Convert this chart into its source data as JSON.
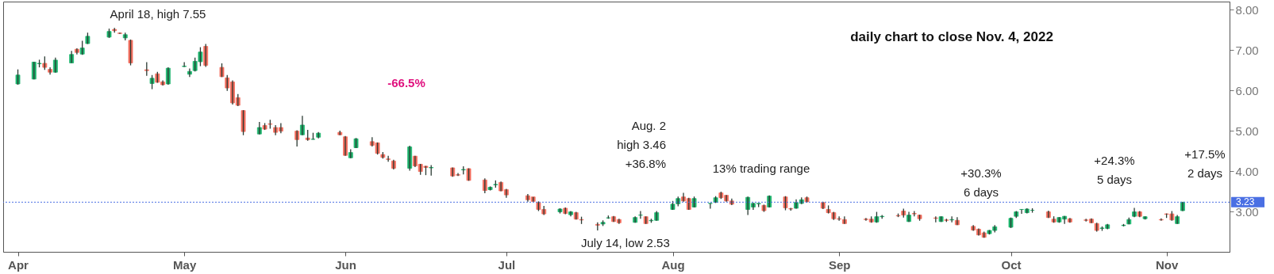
{
  "chart_data": {
    "type": "candlestick",
    "title": "daily chart to close Nov. 4, 2022",
    "x": [
      "2022-04-01",
      "2022-04-04",
      "2022-04-05",
      "2022-04-06",
      "2022-04-07",
      "2022-04-08",
      "2022-04-11",
      "2022-04-12",
      "2022-04-13",
      "2022-04-14",
      "2022-04-18",
      "2022-04-19",
      "2022-04-20",
      "2022-04-21",
      "2022-04-22",
      "2022-04-25",
      "2022-04-26",
      "2022-04-27",
      "2022-04-28",
      "2022-04-29",
      "2022-05-02",
      "2022-05-03",
      "2022-05-04",
      "2022-05-05",
      "2022-05-06",
      "2022-05-09",
      "2022-05-10",
      "2022-05-11",
      "2022-05-12",
      "2022-05-13",
      "2022-05-16",
      "2022-05-17",
      "2022-05-18",
      "2022-05-19",
      "2022-05-20",
      "2022-05-23",
      "2022-05-24",
      "2022-05-25",
      "2022-05-26",
      "2022-05-27",
      "2022-05-31",
      "2022-06-01",
      "2022-06-02",
      "2022-06-03",
      "2022-06-06",
      "2022-06-07",
      "2022-06-08",
      "2022-06-09",
      "2022-06-10",
      "2022-06-13",
      "2022-06-14",
      "2022-06-15",
      "2022-06-16",
      "2022-06-17",
      "2022-06-21",
      "2022-06-22",
      "2022-06-23",
      "2022-06-24",
      "2022-06-27",
      "2022-06-28",
      "2022-06-29",
      "2022-06-30",
      "2022-07-01",
      "2022-07-05",
      "2022-07-06",
      "2022-07-07",
      "2022-07-08",
      "2022-07-11",
      "2022-07-12",
      "2022-07-13",
      "2022-07-14",
      "2022-07-15",
      "2022-07-18",
      "2022-07-19",
      "2022-07-20",
      "2022-07-21",
      "2022-07-22",
      "2022-07-25",
      "2022-07-26",
      "2022-07-27",
      "2022-07-28",
      "2022-07-29",
      "2022-08-01",
      "2022-08-02",
      "2022-08-03",
      "2022-08-04",
      "2022-08-05",
      "2022-08-08",
      "2022-08-09",
      "2022-08-10",
      "2022-08-11",
      "2022-08-12",
      "2022-08-15",
      "2022-08-16",
      "2022-08-17",
      "2022-08-18",
      "2022-08-19",
      "2022-08-22",
      "2022-08-23",
      "2022-08-24",
      "2022-08-25",
      "2022-08-26",
      "2022-08-29",
      "2022-08-30",
      "2022-08-31",
      "2022-09-01",
      "2022-09-02",
      "2022-09-06",
      "2022-09-07",
      "2022-09-08",
      "2022-09-09",
      "2022-09-12",
      "2022-09-13",
      "2022-09-14",
      "2022-09-15",
      "2022-09-16",
      "2022-09-19",
      "2022-09-20",
      "2022-09-21",
      "2022-09-22",
      "2022-09-23",
      "2022-09-26",
      "2022-09-27",
      "2022-09-28",
      "2022-09-29",
      "2022-09-30",
      "2022-10-03",
      "2022-10-04",
      "2022-10-05",
      "2022-10-06",
      "2022-10-07",
      "2022-10-10",
      "2022-10-11",
      "2022-10-12",
      "2022-10-13",
      "2022-10-14",
      "2022-10-17",
      "2022-10-18",
      "2022-10-19",
      "2022-10-20",
      "2022-10-21",
      "2022-10-24",
      "2022-10-25",
      "2022-10-26",
      "2022-10-27",
      "2022-10-28",
      "2022-10-31",
      "2022-11-01",
      "2022-11-02",
      "2022-11-03",
      "2022-11-04"
    ],
    "ohlc": [
      [
        6.16,
        6.52,
        6.14,
        6.38
      ],
      [
        6.28,
        6.71,
        6.27,
        6.7
      ],
      [
        6.66,
        6.76,
        6.57,
        6.67
      ],
      [
        6.67,
        6.84,
        6.51,
        6.57
      ],
      [
        6.52,
        6.57,
        6.39,
        6.45
      ],
      [
        6.45,
        6.81,
        6.44,
        6.75
      ],
      [
        6.68,
        6.98,
        6.68,
        6.89
      ],
      [
        7.02,
        7.04,
        6.89,
        6.94
      ],
      [
        6.9,
        7.23,
        6.88,
        7.05
      ],
      [
        7.16,
        7.43,
        7.15,
        7.34
      ],
      [
        7.32,
        7.53,
        7.3,
        7.46
      ],
      [
        7.51,
        7.55,
        7.43,
        7.48
      ],
      [
        7.42,
        7.43,
        7.4,
        7.41
      ],
      [
        7.3,
        7.43,
        7.24,
        7.38
      ],
      [
        7.24,
        7.26,
        6.62,
        6.68
      ],
      [
        6.51,
        6.7,
        6.36,
        6.49
      ],
      [
        6.17,
        6.38,
        6.03,
        6.3
      ],
      [
        6.41,
        6.46,
        6.19,
        6.2
      ],
      [
        6.21,
        6.25,
        6.12,
        6.14
      ],
      [
        6.16,
        6.57,
        6.14,
        6.55
      ],
      [
        6.59,
        6.7,
        6.58,
        6.6
      ],
      [
        6.4,
        6.54,
        6.33,
        6.47
      ],
      [
        6.49,
        6.81,
        6.47,
        6.72
      ],
      [
        6.71,
        7.07,
        6.6,
        6.95
      ],
      [
        7.09,
        7.15,
        6.58,
        6.62
      ],
      [
        6.57,
        6.67,
        6.33,
        6.34
      ],
      [
        6.31,
        6.38,
        5.99,
        6.06
      ],
      [
        6.21,
        6.25,
        5.65,
        5.69
      ],
      [
        5.82,
        5.91,
        5.61,
        5.63
      ],
      [
        5.5,
        5.51,
        4.89,
        4.98
      ],
      [
        4.92,
        5.22,
        4.91,
        5.08
      ],
      [
        5.13,
        5.19,
        5.02,
        5.04
      ],
      [
        5.17,
        5.27,
        5.05,
        5.16
      ],
      [
        5.08,
        5.14,
        4.89,
        4.96
      ],
      [
        5.08,
        5.19,
        4.94,
        4.99
      ],
      [
        4.99,
        5.01,
        4.61,
        4.78
      ],
      [
        4.9,
        5.37,
        4.89,
        5.14
      ],
      [
        4.82,
        5.02,
        4.75,
        4.78
      ],
      [
        4.79,
        4.95,
        4.78,
        4.79
      ],
      [
        4.84,
        4.97,
        4.81,
        4.94
      ],
      [
        4.96,
        5.0,
        4.89,
        4.9
      ],
      [
        4.85,
        4.87,
        4.38,
        4.39
      ],
      [
        4.33,
        4.54,
        4.32,
        4.46
      ],
      [
        4.58,
        4.82,
        4.57,
        4.8
      ],
      [
        4.73,
        4.84,
        4.61,
        4.64
      ],
      [
        4.7,
        4.71,
        4.41,
        4.44
      ],
      [
        4.41,
        4.47,
        4.31,
        4.34
      ],
      [
        4.3,
        4.38,
        4.23,
        4.29
      ],
      [
        4.25,
        4.28,
        4.04,
        4.07
      ],
      [
        4.07,
        4.63,
        4.01,
        4.6
      ],
      [
        4.37,
        4.38,
        4.1,
        4.13
      ],
      [
        4.17,
        4.18,
        3.91,
        3.99
      ],
      [
        4.12,
        4.13,
        3.9,
        4.09
      ],
      [
        4.08,
        4.15,
        3.89,
        4.09
      ],
      [
        4.08,
        4.09,
        3.86,
        3.88
      ],
      [
        3.91,
        3.95,
        3.88,
        3.9
      ],
      [
        4.03,
        4.12,
        3.92,
        4.04
      ],
      [
        4.06,
        4.07,
        3.76,
        3.77
      ],
      [
        3.78,
        3.82,
        3.45,
        3.52
      ],
      [
        3.54,
        3.62,
        3.52,
        3.6
      ],
      [
        3.66,
        3.77,
        3.59,
        3.67
      ],
      [
        3.72,
        3.74,
        3.5,
        3.51
      ],
      [
        3.54,
        3.56,
        3.34,
        3.41
      ],
      [
        3.39,
        3.43,
        3.24,
        3.29
      ],
      [
        3.36,
        3.36,
        3.24,
        3.25
      ],
      [
        3.22,
        3.25,
        3.01,
        3.05
      ],
      [
        3.05,
        3.14,
        2.91,
        2.94
      ],
      [
        2.99,
        3.08,
        2.95,
        3.06
      ],
      [
        3.08,
        3.1,
        2.93,
        2.95
      ],
      [
        2.92,
        3.01,
        2.88,
        2.99
      ],
      [
        2.97,
        2.99,
        2.8,
        2.81
      ],
      [
        2.8,
        2.87,
        2.69,
        2.79
      ],
      [
        2.68,
        2.73,
        2.53,
        2.66
      ],
      [
        2.69,
        2.78,
        2.64,
        2.73
      ],
      [
        2.84,
        2.9,
        2.82,
        2.84
      ],
      [
        2.87,
        2.89,
        2.74,
        2.75
      ],
      [
        2.8,
        2.82,
        2.69,
        2.72
      ],
      [
        2.73,
        2.88,
        2.72,
        2.85
      ],
      [
        2.91,
        3.01,
        2.82,
        2.91
      ],
      [
        2.87,
        2.88,
        2.69,
        2.7
      ],
      [
        2.77,
        2.82,
        2.72,
        2.78
      ],
      [
        2.78,
        3.01,
        2.77,
        2.97
      ],
      [
        3.05,
        3.26,
        3.04,
        3.18
      ],
      [
        3.19,
        3.37,
        3.13,
        3.32
      ],
      [
        3.36,
        3.46,
        3.24,
        3.26
      ],
      [
        3.32,
        3.34,
        3.04,
        3.05
      ],
      [
        3.11,
        3.37,
        3.1,
        3.32
      ],
      [
        3.2,
        3.2,
        3.07,
        3.2
      ],
      [
        3.23,
        3.38,
        3.21,
        3.34
      ],
      [
        3.46,
        3.49,
        3.31,
        3.34
      ],
      [
        3.4,
        3.41,
        3.24,
        3.26
      ],
      [
        3.26,
        3.32,
        3.16,
        3.18
      ],
      [
        3.05,
        3.37,
        2.91,
        3.35
      ],
      [
        3.11,
        3.21,
        3.04,
        3.2
      ],
      [
        3.19,
        3.2,
        3.11,
        3.2
      ],
      [
        3.15,
        3.17,
        2.99,
        3.02
      ],
      [
        3.11,
        3.4,
        3.1,
        3.38
      ],
      [
        3.36,
        3.38,
        3.03,
        3.09
      ],
      [
        3.07,
        3.09,
        3.02,
        3.06
      ],
      [
        3.08,
        3.3,
        3.07,
        3.22
      ],
      [
        3.2,
        3.35,
        3.18,
        3.29
      ],
      [
        3.34,
        3.37,
        3.22,
        3.24
      ],
      [
        3.22,
        3.24,
        3.06,
        3.08
      ],
      [
        3.05,
        3.15,
        2.95,
        2.97
      ],
      [
        2.97,
        2.99,
        2.79,
        2.82
      ],
      [
        2.82,
        2.88,
        2.77,
        2.81
      ],
      [
        2.8,
        2.88,
        2.69,
        2.7
      ],
      [
        2.81,
        2.84,
        2.77,
        2.8
      ],
      [
        2.81,
        2.88,
        2.72,
        2.74
      ],
      [
        2.74,
        2.99,
        2.72,
        2.87
      ],
      [
        2.87,
        2.91,
        2.82,
        2.88
      ],
      [
        2.9,
        2.95,
        2.86,
        2.89
      ],
      [
        3.01,
        3.07,
        2.85,
        2.91
      ],
      [
        2.75,
        2.99,
        2.74,
        2.91
      ],
      [
        2.95,
        3.01,
        2.88,
        2.94
      ],
      [
        2.91,
        2.92,
        2.77,
        2.82
      ],
      [
        2.84,
        2.88,
        2.73,
        2.83
      ],
      [
        2.75,
        2.88,
        2.74,
        2.87
      ],
      [
        2.79,
        2.82,
        2.74,
        2.78
      ],
      [
        2.79,
        2.88,
        2.73,
        2.8
      ],
      [
        2.78,
        2.86,
        2.66,
        2.67
      ],
      [
        2.63,
        2.66,
        2.52,
        2.54
      ],
      [
        2.56,
        2.58,
        2.4,
        2.42
      ],
      [
        2.47,
        2.5,
        2.35,
        2.36
      ],
      [
        2.45,
        2.54,
        2.43,
        2.53
      ],
      [
        2.53,
        2.66,
        2.48,
        2.62
      ],
      [
        2.61,
        2.85,
        2.59,
        2.83
      ],
      [
        2.88,
        3.01,
        2.84,
        2.99
      ],
      [
        3.05,
        3.05,
        2.94,
        3.05
      ],
      [
        2.97,
        3.08,
        2.95,
        3.06
      ],
      [
        3.03,
        3.08,
        2.97,
        3.03
      ],
      [
        2.99,
        3.02,
        2.84,
        2.85
      ],
      [
        2.81,
        2.88,
        2.72,
        2.74
      ],
      [
        2.74,
        2.86,
        2.72,
        2.85
      ],
      [
        2.81,
        2.89,
        2.69,
        2.88
      ],
      [
        2.82,
        2.84,
        2.72,
        2.74
      ],
      [
        2.79,
        2.82,
        2.75,
        2.78
      ],
      [
        2.81,
        2.83,
        2.71,
        2.72
      ],
      [
        2.7,
        2.72,
        2.5,
        2.53
      ],
      [
        2.58,
        2.63,
        2.52,
        2.59
      ],
      [
        2.58,
        2.69,
        2.56,
        2.67
      ],
      [
        2.65,
        2.69,
        2.63,
        2.66
      ],
      [
        2.69,
        2.85,
        2.68,
        2.8
      ],
      [
        2.88,
        3.09,
        2.86,
        2.99
      ],
      [
        2.99,
        3.01,
        2.86,
        2.88
      ],
      [
        2.82,
        2.88,
        2.8,
        2.87
      ],
      [
        2.8,
        2.83,
        2.77,
        2.79
      ],
      [
        2.94,
        2.95,
        2.84,
        2.93
      ],
      [
        2.94,
        3.01,
        2.77,
        2.79
      ],
      [
        2.7,
        2.91,
        2.69,
        2.87
      ],
      [
        3.02,
        3.23,
        3.01,
        3.23
      ]
    ],
    "colors": [
      "#1bb36b",
      "#1bb36b",
      "#1bb36b",
      "#f26b5b",
      "#f26b5b",
      "#1bb36b",
      "#1bb36b",
      "#f26b5b",
      "#1bb36b",
      "#1bb36b",
      "#1bb36b",
      "#f26b5b",
      "#f26b5b",
      "#1bb36b",
      "#f26b5b",
      "#f26b5b",
      "#1bb36b",
      "#f26b5b",
      "#f26b5b",
      "#1bb36b",
      "#1bb36b",
      "#1bb36b",
      "#1bb36b",
      "#1bb36b",
      "#f26b5b",
      "#f26b5b",
      "#f26b5b",
      "#f26b5b",
      "#f26b5b",
      "#f26b5b",
      "#1bb36b",
      "#f26b5b",
      "#f26b5b",
      "#f26b5b",
      "#f26b5b",
      "#f26b5b",
      "#1bb36b",
      "#f26b5b",
      "#1bb36b",
      "#1bb36b",
      "#f26b5b",
      "#f26b5b",
      "#1bb36b",
      "#1bb36b",
      "#f26b5b",
      "#f26b5b",
      "#f26b5b",
      "#f26b5b",
      "#f26b5b",
      "#1bb36b",
      "#f26b5b",
      "#f26b5b",
      "#f26b5b",
      "#1bb36b",
      "#f26b5b",
      "#f26b5b",
      "#1bb36b",
      "#f26b5b",
      "#f26b5b",
      "#1bb36b",
      "#1bb36b",
      "#f26b5b",
      "#f26b5b",
      "#f26b5b",
      "#f26b5b",
      "#f26b5b",
      "#f26b5b",
      "#1bb36b",
      "#f26b5b",
      "#1bb36b",
      "#f26b5b",
      "#f26b5b",
      "#f26b5b",
      "#1bb36b",
      "#1bb36b",
      "#f26b5b",
      "#f26b5b",
      "#1bb36b",
      "#1bb36b",
      "#f26b5b",
      "#1bb36b",
      "#1bb36b",
      "#1bb36b",
      "#1bb36b",
      "#f26b5b",
      "#f26b5b",
      "#1bb36b",
      "#1bb36b",
      "#1bb36b",
      "#f26b5b",
      "#f26b5b",
      "#f26b5b",
      "#1bb36b",
      "#1bb36b",
      "#1bb36b",
      "#f26b5b",
      "#1bb36b",
      "#f26b5b",
      "#f26b5b",
      "#1bb36b",
      "#1bb36b",
      "#f26b5b",
      "#f26b5b",
      "#f26b5b",
      "#f26b5b",
      "#f26b5b",
      "#f26b5b",
      "#f26b5b",
      "#f26b5b",
      "#1bb36b",
      "#1bb36b",
      "#f26b5b",
      "#f26b5b",
      "#1bb36b",
      "#f26b5b",
      "#f26b5b",
      "#f26b5b",
      "#1bb36b",
      "#f26b5b",
      "#1bb36b",
      "#f26b5b",
      "#f26b5b",
      "#f26b5b",
      "#f26b5b",
      "#1bb36b",
      "#1bb36b",
      "#1bb36b",
      "#1bb36b",
      "#1bb36b",
      "#1bb36b",
      "#1bb36b",
      "#f26b5b",
      "#f26b5b",
      "#1bb36b",
      "#1bb36b",
      "#f26b5b",
      "#f26b5b",
      "#f26b5b",
      "#f26b5b",
      "#1bb36b",
      "#1bb36b",
      "#1bb36b",
      "#1bb36b",
      "#1bb36b",
      "#f26b5b",
      "#1bb36b",
      "#f26b5b",
      "#f26b5b",
      "#f26b5b",
      "#1bb36b",
      "#1bb36b"
    ],
    "xlim": [
      "2022-03-30",
      "2022-11-12"
    ],
    "ylim": [
      2.0,
      8.2
    ],
    "yticks": [
      {
        "value": 3,
        "label": "3.00"
      },
      {
        "value": 4,
        "label": "4.00"
      },
      {
        "value": 5,
        "label": "5.00"
      },
      {
        "value": 6,
        "label": "6.00"
      },
      {
        "value": 7,
        "label": "7.00"
      },
      {
        "value": 8,
        "label": "8.00"
      }
    ],
    "xticks": [
      {
        "value": "2022-04-01",
        "label": "Apr"
      },
      {
        "value": "2022-05-02",
        "label": "May"
      },
      {
        "value": "2022-06-01",
        "label": "Jun"
      },
      {
        "value": "2022-07-01",
        "label": "Jul"
      },
      {
        "value": "2022-08-01",
        "label": "Aug"
      },
      {
        "value": "2022-09-01",
        "label": "Sep"
      },
      {
        "value": "2022-10-03",
        "label": "Oct"
      },
      {
        "value": "2022-11-01",
        "label": "Nov"
      }
    ],
    "ref_lines": [
      {
        "axis": "y",
        "value": 3.23,
        "label": "3.23",
        "color": "#4a6fe3",
        "line_style": "dotted"
      }
    ],
    "annotations": [
      "April 18, high 7.55",
      "-66.5%",
      "Aug. 2\nhigh 3.46\n+36.8%",
      "13% trading range",
      "July 14, low 2.53",
      "+30.3%\n6 days",
      "+24.3%\n5 days",
      "+17.5%\n2 days"
    ],
    "grid": false
  }
}
